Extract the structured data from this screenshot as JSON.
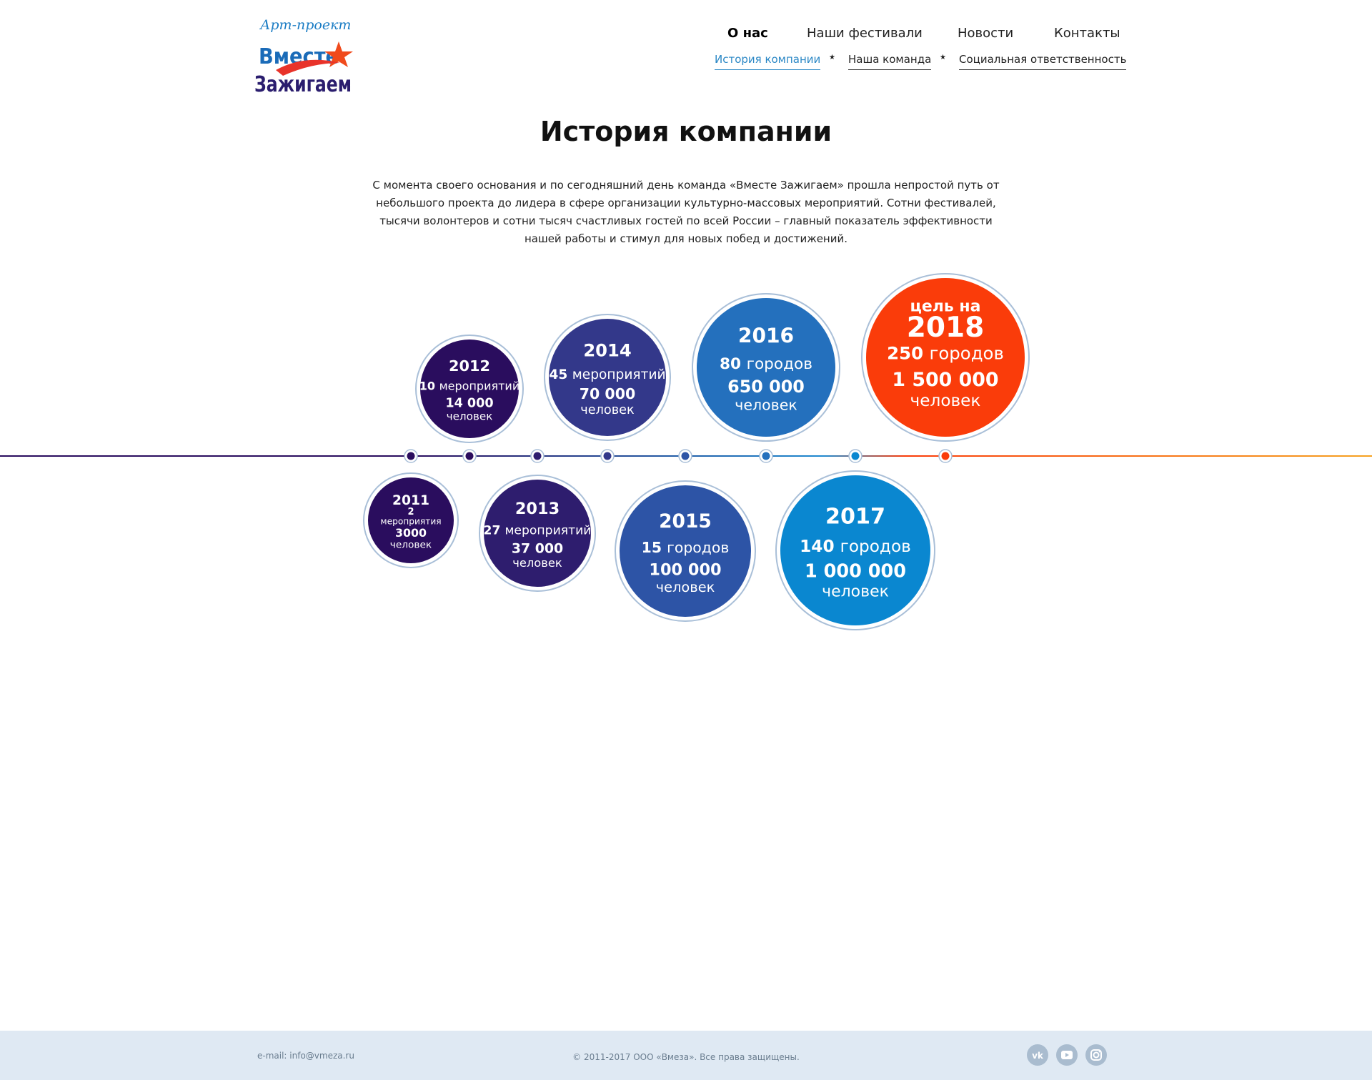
{
  "logo": {
    "script_line": "Арт-проект",
    "word1": "Вместе",
    "word2": "Зажигаем"
  },
  "nav": {
    "main": [
      {
        "label": "О нас",
        "active": true
      },
      {
        "label": "Наши фестивали",
        "active": false
      },
      {
        "label": "Новости",
        "active": false
      },
      {
        "label": "Контакты",
        "active": false
      }
    ],
    "sub": [
      {
        "label": "История компании",
        "active": true
      },
      {
        "label": "Наша команда",
        "active": false
      },
      {
        "label": "Социальная ответственность",
        "active": false
      }
    ]
  },
  "page": {
    "title": "История компании",
    "intro": "С момента своего основания и по сегодняшний день команда «Вместе Зажигаем» прошла непростой путь от небольшого проекта до лидера в сфере организации культурно-массовых мероприятий. Сотни фестивалей, тысячи волонтеров и сотни тысяч счастливых гостей по всей России – главный показатель эффективности нашей работы и стимул для новых побед и достижений."
  },
  "timeline": [
    {
      "year": "2011",
      "stat1_num": "2",
      "stat1_unit": "мероприятия",
      "stat2_num": "3000",
      "stat2_unit": "человек",
      "color": "#2a0d5e"
    },
    {
      "year": "2012",
      "stat1_num": "10",
      "stat1_unit": "мероприятий",
      "stat2_num": "14 000",
      "stat2_unit": "человек",
      "color": "#2a0d5e"
    },
    {
      "year": "2013",
      "stat1_num": "27",
      "stat1_unit": "мероприятий",
      "stat2_num": "37 000",
      "stat2_unit": "человек",
      "color": "#2e1d6e"
    },
    {
      "year": "2014",
      "stat1_num": "45",
      "stat1_unit": "мероприятий",
      "stat2_num": "70 000",
      "stat2_unit": "человек",
      "color": "#33388a"
    },
    {
      "year": "2015",
      "stat1_num": "15",
      "stat1_unit": "городов",
      "stat2_num": "100 000",
      "stat2_unit": "человек",
      "color": "#2d54a6"
    },
    {
      "year": "2016",
      "stat1_num": "80",
      "stat1_unit": "городов",
      "stat2_num": "650 000",
      "stat2_unit": "человек",
      "color": "#2470bd"
    },
    {
      "year": "2017",
      "stat1_num": "140",
      "stat1_unit": "городов",
      "stat2_num": "1 000 000",
      "stat2_unit": "человек",
      "color": "#0a87d0"
    },
    {
      "prefix": "цель на",
      "year": "2018",
      "stat1_num": "250",
      "stat1_unit": "городов",
      "stat2_num": "1 500 000",
      "stat2_unit": "человек",
      "color": "#fa3c0a"
    }
  ],
  "colors": {
    "line_start": "#2a0d5e",
    "line_mid": "#1f8ad0",
    "line_end": "#f6a322",
    "ring": "#a9bfd8"
  },
  "footer": {
    "email": "e-mail: info@vmeza.ru",
    "copyright": "© 2011-2017   ООО «Вмеза». Все права защищены.",
    "social": [
      "vk-icon",
      "youtube-icon",
      "instagram-icon"
    ]
  }
}
